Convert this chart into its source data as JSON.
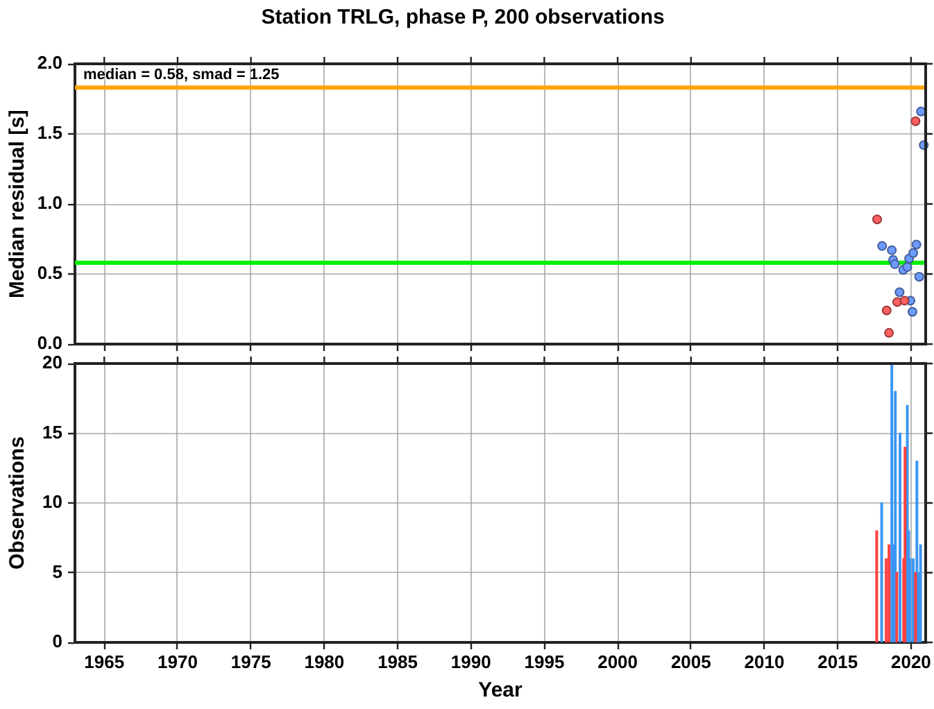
{
  "chart_data": [
    {
      "type": "scatter",
      "title": "Station TRLG, phase P, 200 observations",
      "ylabel": "Median residual [s]",
      "annotations": [
        "median = 0.58, smad = 1.25"
      ],
      "xlim": [
        1963,
        2021
      ],
      "xticks": [
        1965,
        1970,
        1975,
        1980,
        1985,
        1990,
        1995,
        2000,
        2005,
        2010,
        2015,
        2020
      ],
      "ylim": [
        0,
        2
      ],
      "yticks": [
        {
          "value": 0,
          "label": "0.0"
        },
        {
          "value": 0.5,
          "label": "0.5"
        },
        {
          "value": 1,
          "label": "1.0"
        },
        {
          "value": 1.5,
          "label": "1.5"
        },
        {
          "value": 2,
          "label": "2.0"
        }
      ],
      "tick_labels": "y",
      "grid": true,
      "legend": false,
      "marker": "circle",
      "ref_lines": [
        {
          "axis": "y",
          "value": 1.83,
          "color": "#ffa500"
        },
        {
          "axis": "y",
          "value": 0.58,
          "color": "#00ee00"
        }
      ],
      "series": [
        {
          "color": "#ff6060",
          "x": [
            2017.69,
            2018.34,
            2018.5,
            2019.06,
            2019.56,
            2020.31
          ],
          "values": [
            0.89,
            0.24,
            0.08,
            0.3,
            0.31,
            1.59
          ]
        },
        {
          "color": "#6e9bff",
          "x": [
            2018.03,
            2018.69,
            2018.78,
            2018.9,
            2019.22,
            2019.47,
            2019.75,
            2019.87,
            2019.96,
            2020.1,
            2020.15,
            2020.37,
            2020.56,
            2020.68,
            2020.87
          ],
          "values": [
            0.7,
            0.67,
            0.6,
            0.57,
            0.37,
            0.53,
            0.55,
            0.61,
            0.31,
            0.23,
            0.65,
            0.71,
            0.48,
            1.66,
            1.42
          ]
        }
      ]
    },
    {
      "type": "bar",
      "xlabel": "Year",
      "ylabel": "Observations",
      "xlim": [
        1963,
        2021
      ],
      "xticks": [
        1965,
        1970,
        1975,
        1980,
        1985,
        1990,
        1995,
        2000,
        2005,
        2010,
        2015,
        2020
      ],
      "ylim": [
        0,
        20
      ],
      "yticks": [
        0,
        5,
        10,
        15,
        20
      ],
      "grid": true,
      "legend": false,
      "series": [
        {
          "color": "#ff4040",
          "x": [
            2017.66,
            2018.31,
            2018.5,
            2019.03,
            2019.5,
            2019.59,
            2020.31
          ],
          "values": [
            8,
            6,
            7,
            5,
            6,
            14,
            5
          ]
        },
        {
          "color": "#3a95f5",
          "x": [
            2018.0,
            2018.69,
            2018.81,
            2018.93,
            2019.25,
            2019.75,
            2019.84,
            2019.93,
            2020.15,
            2020.4,
            2020.53,
            2020.65
          ],
          "values": [
            10,
            20,
            7,
            18,
            15,
            17,
            8,
            6,
            6,
            13,
            5,
            7
          ]
        }
      ]
    }
  ]
}
